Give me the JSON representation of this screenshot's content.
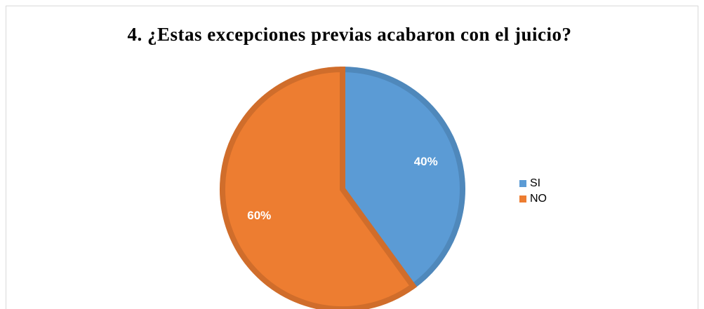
{
  "chart_data": {
    "type": "pie",
    "title": "4. ¿Estas excepciones previas acabaron con el juicio?",
    "categories": [
      "SI",
      "NO"
    ],
    "values": [
      40,
      60
    ],
    "value_labels": [
      "40%",
      "60%"
    ],
    "colors": [
      "#5b9bd5",
      "#ed7d31"
    ],
    "legend": "right"
  }
}
